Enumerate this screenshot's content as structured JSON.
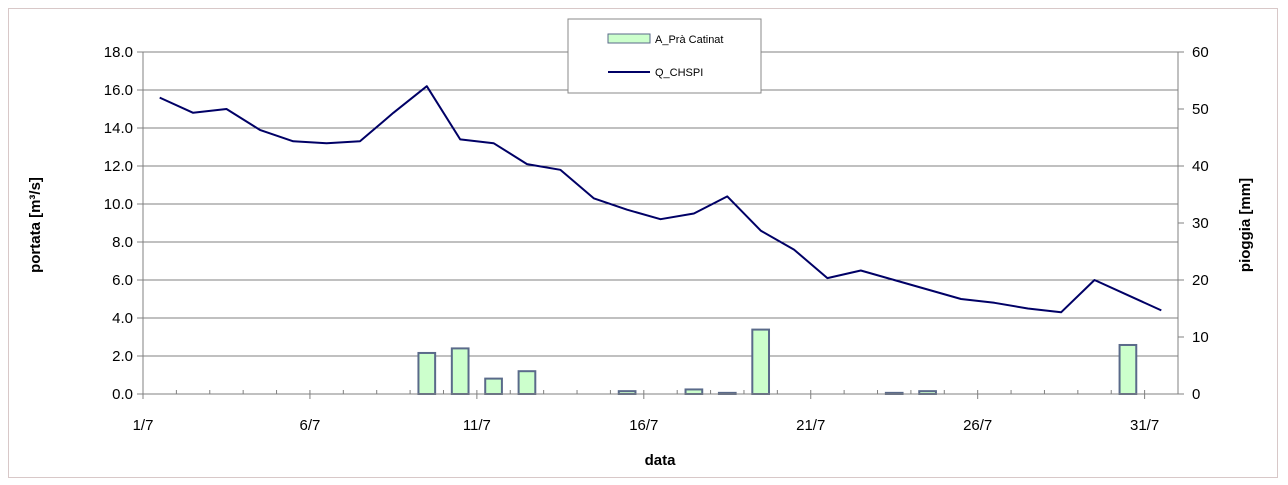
{
  "chart_data": {
    "type": "bar+line",
    "title": "",
    "xlabel": "data",
    "ylabel_left": "portata [m³/s]",
    "ylabel_right": "pioggia [mm]",
    "ylim_left": [
      0,
      18
    ],
    "ylim_right": [
      0,
      60
    ],
    "yticks_left": [
      "0.0",
      "2.0",
      "4.0",
      "6.0",
      "8.0",
      "10.0",
      "12.0",
      "14.0",
      "16.0",
      "18.0"
    ],
    "yticks_right": [
      "0",
      "10",
      "20",
      "30",
      "40",
      "50",
      "60"
    ],
    "x_tick_labels": [
      "1/7",
      "6/7",
      "11/7",
      "16/7",
      "21/7",
      "26/7",
      "31/7"
    ],
    "x_tick_days": [
      1,
      6,
      11,
      16,
      21,
      26,
      31
    ],
    "days": [
      1,
      2,
      3,
      4,
      5,
      6,
      7,
      8,
      9,
      10,
      11,
      12,
      13,
      14,
      15,
      16,
      17,
      18,
      19,
      20,
      21,
      22,
      23,
      24,
      25,
      26,
      27,
      28,
      29,
      30,
      31
    ],
    "grid": true,
    "legend_position": "top-center",
    "series": [
      {
        "name": "A_Prà Catinat",
        "kind": "bar",
        "axis": "right",
        "color": "#ccffcc",
        "edge": "#5a6a8a",
        "values": [
          0,
          0,
          0,
          0,
          0,
          0,
          0,
          0,
          7.2,
          8.0,
          2.7,
          4.0,
          0,
          0,
          0.5,
          0,
          0.8,
          0.2,
          11.3,
          0,
          0,
          0,
          0.2,
          0.5,
          0,
          0,
          0,
          0,
          0,
          8.6,
          0
        ]
      },
      {
        "name": "Q_CHSPI",
        "kind": "line",
        "axis": "left",
        "color": "#000066",
        "values": [
          15.6,
          14.8,
          15.0,
          13.9,
          13.3,
          13.2,
          13.3,
          14.8,
          16.2,
          13.4,
          13.2,
          12.1,
          11.8,
          10.3,
          9.7,
          9.2,
          9.5,
          10.4,
          8.6,
          7.6,
          6.1,
          6.5,
          6.0,
          5.5,
          5.0,
          4.8,
          4.5,
          4.3,
          6.0,
          5.2,
          4.4
        ]
      }
    ]
  }
}
